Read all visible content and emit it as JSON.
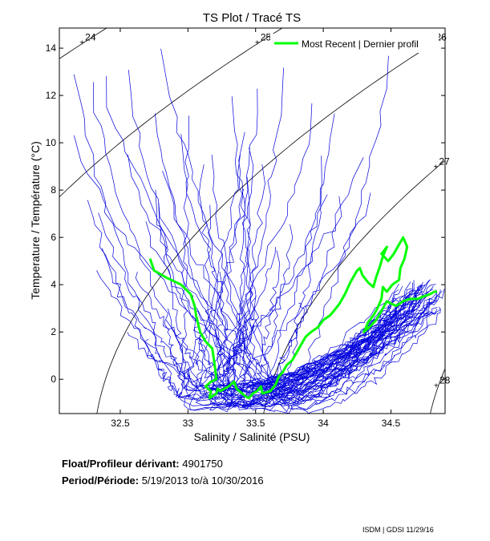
{
  "chart_data": {
    "type": "line",
    "title": "TS Plot / Tracé TS",
    "xlabel": "Salinity / Salinité (PSU)",
    "ylabel": "Temperature / Température (°C)",
    "xlim": [
      32.05,
      34.9
    ],
    "ylim": [
      -1.45,
      14.85
    ],
    "xticks": [
      32.5,
      33,
      33.5,
      34,
      34.5
    ],
    "xtick_labels": [
      "32.5",
      "33",
      "33.5",
      "34",
      "34.5"
    ],
    "yticks": [
      0,
      2,
      4,
      6,
      8,
      10,
      12,
      14
    ],
    "ytick_labels": [
      "0",
      "2",
      "4",
      "6",
      "8",
      "10",
      "12",
      "14"
    ],
    "legend": {
      "label": "Most Recent | Dernier profil",
      "placement": "top-right"
    },
    "isopycnals": [
      {
        "label": "24",
        "sigma": 24
      },
      {
        "label": "25",
        "sigma": 25
      },
      {
        "label": "26",
        "sigma": 26
      },
      {
        "label": "27",
        "sigma": 27
      },
      {
        "label": "28",
        "sigma": 28
      }
    ],
    "series": [
      {
        "name": "Most Recent | Dernier profil",
        "color": "#00ff00",
        "x": [
          32.72,
          32.75,
          32.84,
          32.95,
          33.02,
          33.05,
          33.06,
          33.09,
          33.13,
          33.18,
          33.2,
          33.21,
          33.17,
          33.13,
          33.17,
          33.16,
          33.21,
          33.22,
          33.24,
          33.3,
          33.34,
          33.36,
          33.4,
          33.42,
          33.45,
          33.48,
          33.51,
          33.54,
          33.55,
          33.61,
          33.65,
          33.67,
          33.7,
          33.73,
          33.77,
          33.8,
          33.83,
          33.87,
          33.91,
          33.96,
          34.0,
          34.05,
          34.08,
          34.12,
          34.16,
          34.2,
          34.25,
          34.27,
          34.29,
          34.33,
          34.37,
          34.39,
          34.42,
          34.44,
          34.47,
          34.43,
          34.48,
          34.52,
          34.55,
          34.57,
          34.59,
          34.62,
          34.6,
          34.57,
          34.56,
          34.51,
          34.47,
          34.44,
          34.43,
          34.4,
          34.37,
          34.33,
          34.31,
          34.3,
          34.34,
          34.39,
          34.42,
          34.45,
          34.47,
          34.5,
          34.54,
          34.59,
          34.64,
          34.7,
          34.74,
          34.79,
          34.82,
          34.84
        ],
        "y": [
          5.1,
          4.6,
          4.3,
          4.0,
          3.6,
          3.1,
          2.7,
          2.0,
          1.6,
          1.3,
          0.5,
          0.0,
          -0.1,
          -0.3,
          -0.5,
          -0.8,
          -0.6,
          -0.4,
          -0.5,
          -0.3,
          -0.1,
          -0.4,
          -0.6,
          -0.7,
          -0.8,
          -0.6,
          -0.5,
          -0.3,
          -0.6,
          -0.5,
          -0.2,
          0.1,
          0.3,
          0.6,
          0.8,
          1.1,
          1.4,
          1.8,
          2.0,
          2.2,
          2.5,
          2.7,
          2.9,
          3.2,
          3.6,
          4.1,
          4.6,
          4.7,
          4.4,
          4.1,
          3.9,
          4.3,
          4.8,
          5.2,
          5.6,
          5.3,
          5.0,
          5.3,
          5.6,
          5.8,
          6.0,
          5.6,
          5.1,
          4.7,
          4.2,
          4.0,
          3.7,
          3.9,
          3.4,
          3.0,
          2.7,
          2.4,
          2.1,
          2.0,
          2.2,
          2.5,
          2.8,
          3.1,
          3.3,
          3.2,
          3.1,
          3.3,
          3.4,
          3.4,
          3.5,
          3.6,
          3.7,
          3.7
        ]
      }
    ]
  },
  "float": {
    "label": "Float/Profileur dérivant:",
    "value": "4901750"
  },
  "period": {
    "label": "Period/Période:",
    "start": "5/19/2013",
    "sep": "to/à",
    "end": "10/30/2016"
  },
  "credit": "ISDM | GDSI  11/29/16"
}
